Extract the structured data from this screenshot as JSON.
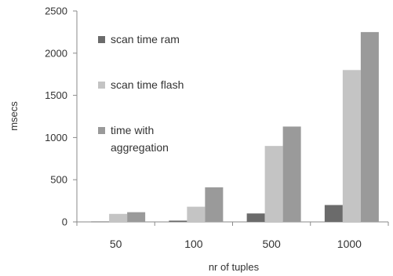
{
  "chart_data": {
    "type": "bar",
    "title": "",
    "xlabel": "nr of tuples",
    "ylabel": "msecs",
    "categories": [
      "50",
      "100",
      "500",
      "1000"
    ],
    "ylim": [
      0,
      2500
    ],
    "yticks": [
      "0",
      "500",
      "1000",
      "1500",
      "2000",
      "2500"
    ],
    "yticks_values": [
      0,
      500,
      1000,
      1500,
      2000,
      2500
    ],
    "grid": false,
    "legend_position": "inside-left",
    "series": [
      {
        "name": "scan time ram",
        "legend_lines": [
          "scan time ram"
        ],
        "color": "#6b6b6b",
        "values": [
          5,
          15,
          100,
          200
        ]
      },
      {
        "name": "scan time flash",
        "legend_lines": [
          "scan time flash"
        ],
        "color": "#c4c4c4",
        "values": [
          95,
          180,
          900,
          1800
        ]
      },
      {
        "name": "time with aggregation",
        "legend_lines": [
          "time with",
          "aggregation"
        ],
        "color": "#9a9a9a",
        "values": [
          115,
          410,
          1130,
          2250
        ]
      }
    ]
  }
}
